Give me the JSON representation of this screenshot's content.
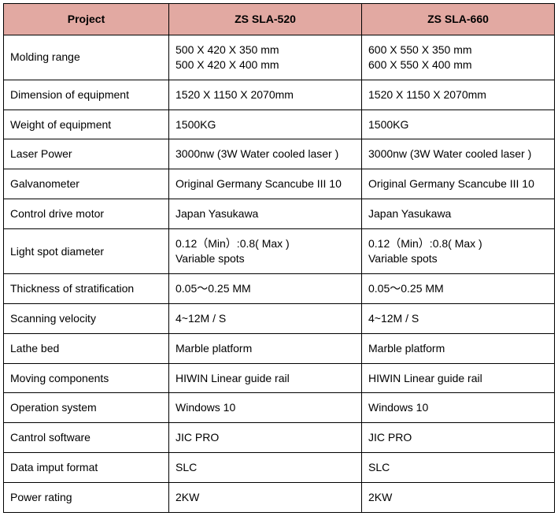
{
  "table": {
    "header_bg": "#e2a9a2",
    "border_color": "#000000",
    "columns": [
      "Project",
      "ZS SLA-520",
      "ZS SLA-660"
    ],
    "rows": [
      {
        "project": "Molding range",
        "v1": "500 X 420 X 350 mm\n500 X 420 X 400 mm",
        "v2": "600 X 550 X 350 mm\n600 X 550 X 400 mm"
      },
      {
        "project": "Dimension of equipment",
        "v1": "1520 X 1150 X 2070mm",
        "v2": "1520 X 1150 X 2070mm"
      },
      {
        "project": "Weight of equipment",
        "v1": "1500KG",
        "v2": "1500KG"
      },
      {
        "project": "Laser Power",
        "v1": "3000nw (3W Water cooled laser )",
        "v2": "3000nw (3W Water cooled laser )"
      },
      {
        "project": "Galvanometer",
        "v1": "Original Germany Scancube III 10",
        "v2": "Original Germany Scancube III 10"
      },
      {
        "project": "Control drive motor",
        "v1": "Japan Yasukawa",
        "v2": "Japan Yasukawa"
      },
      {
        "project": "Light spot diameter",
        "v1": "0.12（Min）:0.8( Max )\nVariable spots",
        "v2": "0.12（Min）:0.8( Max )\nVariable spots"
      },
      {
        "project": "Thickness of stratification",
        "v1": "0.05～0.25 MM",
        "v2": "0.05～0.25 MM"
      },
      {
        "project": "Scanning velocity",
        "v1": "4~12M / S",
        "v2": "4~12M / S"
      },
      {
        "project": "Lathe bed",
        "v1": "Marble platform",
        "v2": "Marble platform"
      },
      {
        "project": "Moving components",
        "v1": "HIWIN Linear guide rail",
        "v2": "HIWIN Linear guide rail"
      },
      {
        "project": "Operation system",
        "v1": "Windows 10",
        "v2": "Windows 10"
      },
      {
        "project": "Cantrol software",
        "v1": "JIC PRO",
        "v2": "JIC PRO"
      },
      {
        "project": "Data imput format",
        "v1": "SLC",
        "v2": "SLC"
      },
      {
        "project": "Power rating",
        "v1": "2KW",
        "v2": "2KW"
      }
    ]
  }
}
